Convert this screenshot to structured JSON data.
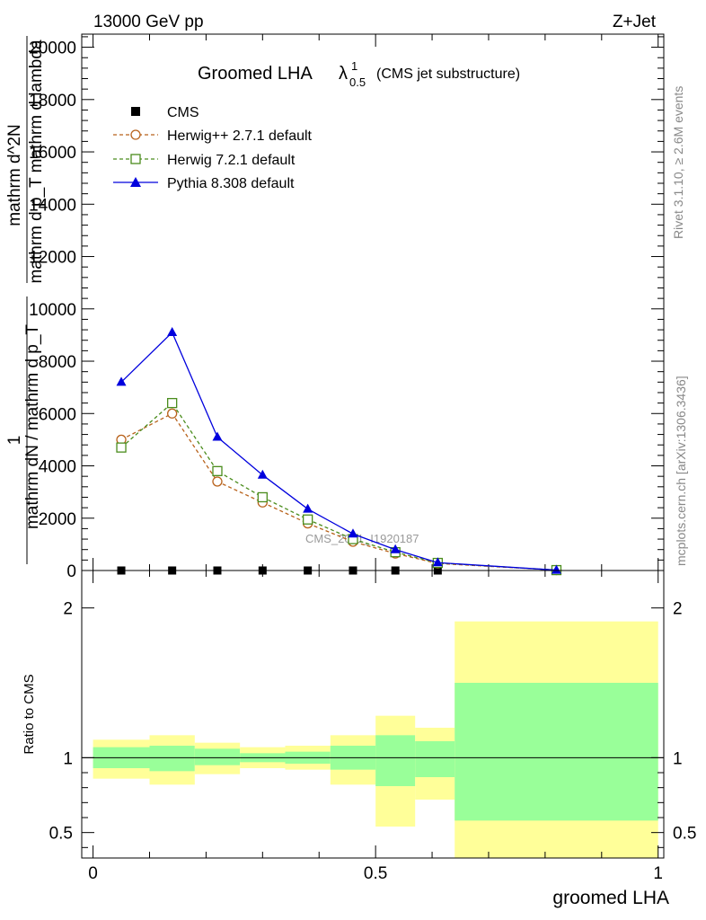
{
  "header": {
    "energy_label": "13000 GeV pp",
    "process_label": "Z+Jet",
    "title_main": "Groomed LHA",
    "title_lambda": "λ",
    "title_sup": "1",
    "title_sub": "0.5",
    "title_paren": "(CMS jet substructure)",
    "rivet_label": "Rivet 3.1.10, ≥ 2.6M events",
    "mcplots_label": "mcplots.cern.ch [arXiv:1306.3436]",
    "watermark": "CMS_2021_I1920187"
  },
  "axes": {
    "ylabel_top_numer": "1",
    "ylabel_top_denom": "mathrm dN / mathrm d p_T",
    "ylabel_top_side_numer": "mathrm d^2N",
    "ylabel_top_side_denom": "mathrm d p_T mathrm d lambda",
    "ylabel_bottom": "Ratio to CMS",
    "xlabel": "groomed LHA"
  },
  "colors": {
    "herwigpp": "#b8621b",
    "herwig7": "#4a8c1c",
    "pythia": "#0000dd",
    "band_inner": "#99ff99",
    "band_outer": "#ffff99"
  },
  "chart_data": [
    {
      "type": "line",
      "panel": "main",
      "xlim": [
        -0.02,
        1.01
      ],
      "ylim": [
        0,
        20500
      ],
      "x_ticks": [
        0,
        0.5,
        1
      ],
      "y_ticks": [
        0,
        2000,
        4000,
        6000,
        8000,
        10000,
        12000,
        14000,
        16000,
        18000,
        20000
      ],
      "y_tick_labels": [
        "0",
        "2000",
        "4000",
        "6000",
        "8000",
        "10000",
        "12000",
        "14000",
        "16000",
        "18000",
        "20000"
      ],
      "series": [
        {
          "name": "CMS",
          "marker": "square-filled",
          "x": [
            0.05,
            0.14,
            0.22,
            0.3,
            0.38,
            0.46,
            0.535,
            0.61,
            0.82
          ],
          "y": [
            0,
            0,
            0,
            0,
            0,
            0,
            0,
            0,
            0
          ]
        },
        {
          "name": "Herwig++ 2.7.1 default",
          "marker": "circle-open",
          "line": "dashed",
          "x": [
            0.05,
            0.14,
            0.22,
            0.3,
            0.38,
            0.46,
            0.535,
            0.61,
            0.82
          ],
          "y": [
            5000,
            6000,
            3400,
            2600,
            1800,
            1100,
            650,
            270,
            15
          ]
        },
        {
          "name": "Herwig 7.2.1 default",
          "marker": "square-open",
          "line": "dashed",
          "x": [
            0.05,
            0.14,
            0.22,
            0.3,
            0.38,
            0.46,
            0.535,
            0.61,
            0.82
          ],
          "y": [
            4700,
            6400,
            3800,
            2800,
            1950,
            1200,
            700,
            290,
            15
          ]
        },
        {
          "name": "Pythia 8.308 default",
          "marker": "triangle-filled",
          "line": "solid",
          "x": [
            0.05,
            0.14,
            0.22,
            0.3,
            0.38,
            0.46,
            0.535,
            0.61,
            0.82
          ],
          "y": [
            7200,
            9100,
            5100,
            3650,
            2350,
            1400,
            800,
            300,
            15
          ]
        }
      ]
    },
    {
      "type": "area",
      "panel": "ratio",
      "xlim": [
        -0.02,
        1.01
      ],
      "ylim": [
        0.33,
        2.25
      ],
      "x_ticks": [
        0,
        0.5,
        1
      ],
      "x_tick_labels": [
        "0",
        "0.5",
        "1"
      ],
      "y_ticks": [
        0.5,
        1,
        2
      ],
      "y_tick_labels": [
        "0.5",
        "1",
        "2"
      ],
      "reference_line": 1,
      "bins": [
        {
          "x0": 0.0,
          "x1": 0.1,
          "inner": [
            0.93,
            1.07
          ],
          "outer": [
            0.86,
            1.12
          ]
        },
        {
          "x0": 0.1,
          "x1": 0.18,
          "inner": [
            0.91,
            1.08
          ],
          "outer": [
            0.82,
            1.15
          ]
        },
        {
          "x0": 0.18,
          "x1": 0.26,
          "inner": [
            0.95,
            1.06
          ],
          "outer": [
            0.89,
            1.1
          ]
        },
        {
          "x0": 0.26,
          "x1": 0.34,
          "inner": [
            0.97,
            1.03
          ],
          "outer": [
            0.93,
            1.07
          ]
        },
        {
          "x0": 0.34,
          "x1": 0.42,
          "inner": [
            0.96,
            1.04
          ],
          "outer": [
            0.92,
            1.08
          ]
        },
        {
          "x0": 0.42,
          "x1": 0.5,
          "inner": [
            0.92,
            1.08
          ],
          "outer": [
            0.82,
            1.15
          ]
        },
        {
          "x0": 0.5,
          "x1": 0.57,
          "inner": [
            0.81,
            1.15
          ],
          "outer": [
            0.54,
            1.28
          ]
        },
        {
          "x0": 0.57,
          "x1": 0.64,
          "inner": [
            0.87,
            1.11
          ],
          "outer": [
            0.72,
            1.2
          ]
        },
        {
          "x0": 0.64,
          "x1": 1.0,
          "inner": [
            0.58,
            1.5
          ],
          "outer": [
            0.33,
            1.91
          ]
        }
      ]
    }
  ]
}
